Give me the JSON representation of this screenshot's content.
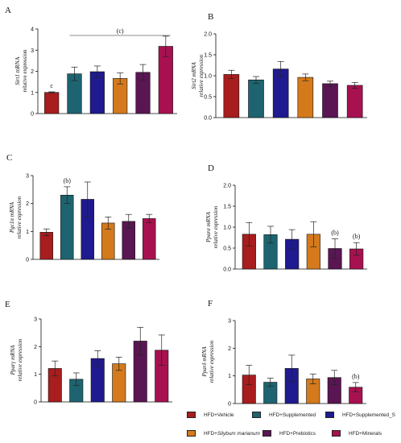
{
  "chart_data": [
    {
      "type": "bar",
      "panel_label": "A",
      "ylabel_gene": "Sirt1",
      "ylabel_suffix": " mRNA",
      "ylabel_line2": "relative expression",
      "ylabel_style": "normal",
      "ylim": [
        0,
        4
      ],
      "yticks": [
        "0",
        "1",
        "2",
        "3",
        "4"
      ],
      "values": [
        1.0,
        1.88,
        1.98,
        1.66,
        1.95,
        3.18
      ],
      "errors": [
        0.03,
        0.32,
        0.27,
        0.26,
        0.37,
        0.48
      ],
      "annotations": [
        {
          "bar": 0,
          "text": "c"
        }
      ],
      "bracket": {
        "from": 1,
        "to": 5,
        "text": "(c)"
      }
    },
    {
      "type": "bar",
      "panel_label": "B",
      "ylabel_gene": "Sirt2",
      "ylabel_suffix": " mRNA",
      "ylabel_line2": "relative expression",
      "ylabel_style": "italic",
      "ylim": [
        0,
        2
      ],
      "yticks": [
        "0.0",
        "0.5",
        "1.0",
        "1.5",
        "2.0"
      ],
      "values": [
        1.03,
        0.9,
        1.16,
        0.96,
        0.81,
        0.77
      ],
      "errors": [
        0.1,
        0.08,
        0.18,
        0.08,
        0.06,
        0.07
      ],
      "annotations": []
    },
    {
      "type": "bar",
      "panel_label": "C",
      "ylabel_gene": "Pgc1α",
      "ylabel_suffix": " mRNA",
      "ylabel_line2": "relative expression",
      "ylabel_style": "italic",
      "ylim": [
        0,
        3
      ],
      "yticks": [
        "0",
        "1",
        "2",
        "3"
      ],
      "values": [
        0.97,
        2.3,
        2.15,
        1.3,
        1.36,
        1.46
      ],
      "errors": [
        0.12,
        0.3,
        0.62,
        0.22,
        0.25,
        0.15
      ],
      "annotations": [
        {
          "bar": 1,
          "text": "(b)"
        }
      ]
    },
    {
      "type": "bar",
      "panel_label": "D",
      "ylabel_gene": "Pparα",
      "ylabel_suffix": " mRNA",
      "ylabel_line2": "relative expression",
      "ylabel_style": "italic",
      "ylim": [
        0,
        2
      ],
      "yticks": [
        "0.0",
        "0.5",
        "1.0",
        "1.5",
        "2.0"
      ],
      "values": [
        0.83,
        0.82,
        0.71,
        0.83,
        0.49,
        0.48
      ],
      "errors": [
        0.28,
        0.2,
        0.23,
        0.3,
        0.23,
        0.15
      ],
      "annotations": [
        {
          "bar": 4,
          "text": "(b)"
        },
        {
          "bar": 5,
          "text": "(b)"
        }
      ]
    },
    {
      "type": "bar",
      "panel_label": "E",
      "ylabel_gene": "Pparγ",
      "ylabel_suffix": " mRNA",
      "ylabel_line2": "relative expression",
      "ylabel_style": "italic",
      "ylim": [
        0,
        3
      ],
      "yticks": [
        "0",
        "1",
        "2",
        "3"
      ],
      "values": [
        1.21,
        0.82,
        1.57,
        1.38,
        2.2,
        1.87
      ],
      "errors": [
        0.27,
        0.23,
        0.28,
        0.24,
        0.5,
        0.55
      ],
      "annotations": []
    },
    {
      "type": "bar",
      "panel_label": "F",
      "ylabel_gene": "Pparδ",
      "ylabel_suffix": " mRNA",
      "ylabel_line2": "relative expression",
      "ylabel_style": "italic",
      "ylim": [
        0,
        3
      ],
      "yticks": [
        "0",
        "1",
        "2",
        "3"
      ],
      "values": [
        1.03,
        0.77,
        1.27,
        0.89,
        0.94,
        0.59
      ],
      "errors": [
        0.35,
        0.15,
        0.48,
        0.18,
        0.26,
        0.17
      ],
      "annotations": [
        {
          "bar": 5,
          "text": "(b)"
        }
      ]
    }
  ],
  "colors": [
    "#a81d1d",
    "#1d6470",
    "#1f1a8f",
    "#d47a1c",
    "#5a1553",
    "#a8114f"
  ],
  "legend": [
    {
      "label": "HFD+Vehicle",
      "color": "#a81d1d"
    },
    {
      "label": "HFD+Supplemented",
      "color": "#1d6470"
    },
    {
      "label": "HFD+Supplemented_S",
      "color": "#1f1a8f"
    },
    {
      "label": "HFD+",
      "label_italic": "Silybum marianum",
      "color": "#d47a1c"
    },
    {
      "label": "HFD+Prebiotics",
      "color": "#5a1553"
    },
    {
      "label": "HFD+Minerals",
      "color": "#a8114f"
    }
  ]
}
